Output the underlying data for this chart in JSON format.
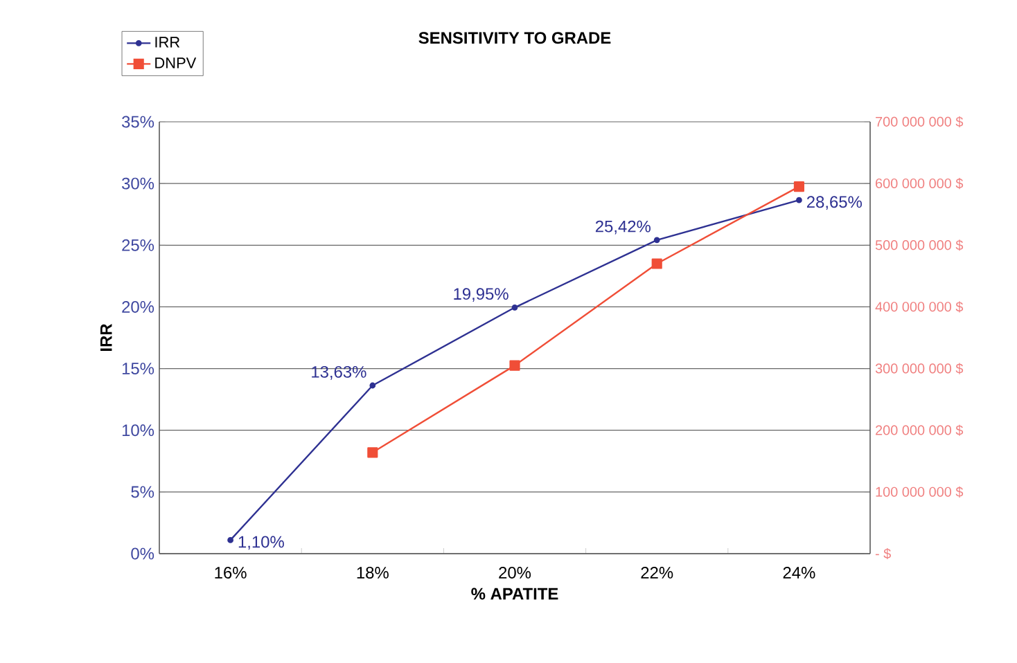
{
  "chart_data": {
    "type": "line",
    "title": "SENSITIVITY TO GRADE",
    "xlabel": "% APATITE",
    "ylabel": "IRR",
    "categories": [
      "16%",
      "18%",
      "20%",
      "22%",
      "24%"
    ],
    "series": [
      {
        "name": "IRR",
        "color": "#2e3192",
        "marker": "circle",
        "values": [
          1.1,
          13.63,
          19.95,
          25.42,
          28.65
        ],
        "value_labels": [
          "1,10%",
          "13,63%",
          "19,95%",
          "25,42%",
          "28,65%"
        ]
      },
      {
        "name": "DNPV",
        "color": "#f04e37",
        "marker": "square",
        "axis": "y2",
        "values": [
          null,
          164000000,
          305000000,
          470000000,
          595000000
        ]
      }
    ],
    "ylim": [
      0,
      35
    ],
    "yticks": [
      {
        "value": 0,
        "label": "0%"
      },
      {
        "value": 5,
        "label": "5%"
      },
      {
        "value": 10,
        "label": "10%"
      },
      {
        "value": 15,
        "label": "15%"
      },
      {
        "value": 20,
        "label": "20%"
      },
      {
        "value": 25,
        "label": "25%"
      },
      {
        "value": 30,
        "label": "30%"
      },
      {
        "value": 35,
        "label": "35%"
      }
    ],
    "y2lim": [
      0,
      700000000
    ],
    "y2ticks": [
      {
        "value": 0,
        "label": "- $"
      },
      {
        "value": 100000000,
        "label": "100 000 000 $"
      },
      {
        "value": 200000000,
        "label": "200 000 000 $"
      },
      {
        "value": 300000000,
        "label": "300 000 000 $"
      },
      {
        "value": 400000000,
        "label": "400 000 000 $"
      },
      {
        "value": 500000000,
        "label": "500 000 000 $"
      },
      {
        "value": 600000000,
        "label": "600 000 000 $"
      },
      {
        "value": 700000000,
        "label": "700 000 000 $"
      }
    ],
    "grid": "y",
    "legend": "top left"
  }
}
